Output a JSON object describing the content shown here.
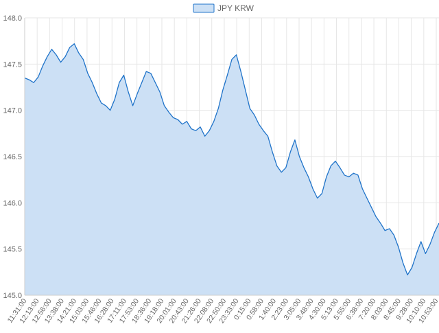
{
  "chart_data": {
    "type": "area",
    "title": "",
    "xlabel": "",
    "ylabel": "",
    "legend": {
      "placement": "top-center"
    },
    "grid": true,
    "ylim": [
      145.0,
      148.0
    ],
    "y_ticks": [
      "145.0",
      "145.5",
      "146.0",
      "146.5",
      "147.0",
      "147.5",
      "148.0"
    ],
    "x_tick_labels": [
      "11:31:00",
      "12:13:00",
      "12:56:00",
      "13:38:00",
      "14:21:00",
      "15:03:00",
      "15:46:00",
      "16:28:00",
      "17:11:00",
      "17:53:00",
      "18:36:00",
      "19:18:00",
      "20:01:00",
      "20:43:00",
      "21:26:00",
      "22:08:00",
      "22:50:00",
      "23:33:00",
      "0:15:00",
      "0:58:00",
      "1:40:00",
      "2:23:00",
      "3:05:00",
      "3:48:00",
      "4:30:00",
      "5:13:00",
      "5:55:00",
      "6:38:00",
      "7:20:00",
      "8:03:00",
      "8:45:00",
      "9:28:00",
      "10:10:00",
      "10:53:00"
    ],
    "colors": {
      "line": "#1f73c9",
      "fill": "#cce0f5",
      "grid": "#e6e6e6",
      "axis": "#cccccc",
      "text": "#666666"
    },
    "series": [
      {
        "name": "JPY KRW",
        "x_step": "0:21:00",
        "values": [
          147.35,
          147.33,
          147.3,
          147.36,
          147.48,
          147.58,
          147.66,
          147.6,
          147.52,
          147.58,
          147.68,
          147.72,
          147.62,
          147.55,
          147.4,
          147.3,
          147.18,
          147.08,
          147.05,
          147.0,
          147.12,
          147.3,
          147.38,
          147.2,
          147.05,
          147.18,
          147.3,
          147.42,
          147.4,
          147.3,
          147.2,
          147.05,
          146.98,
          146.92,
          146.9,
          146.85,
          146.88,
          146.8,
          146.78,
          146.82,
          146.72,
          146.78,
          146.88,
          147.02,
          147.22,
          147.38,
          147.55,
          147.6,
          147.42,
          147.22,
          147.02,
          146.95,
          146.85,
          146.78,
          146.72,
          146.55,
          146.4,
          146.33,
          146.38,
          146.55,
          146.68,
          146.5,
          146.38,
          146.28,
          146.15,
          146.05,
          146.1,
          146.28,
          146.4,
          146.45,
          146.38,
          146.3,
          146.28,
          146.32,
          146.3,
          146.15,
          146.05,
          145.95,
          145.85,
          145.78,
          145.7,
          145.72,
          145.65,
          145.52,
          145.35,
          145.22,
          145.3,
          145.45,
          145.58,
          145.45,
          145.55,
          145.68,
          145.78
        ]
      }
    ]
  }
}
